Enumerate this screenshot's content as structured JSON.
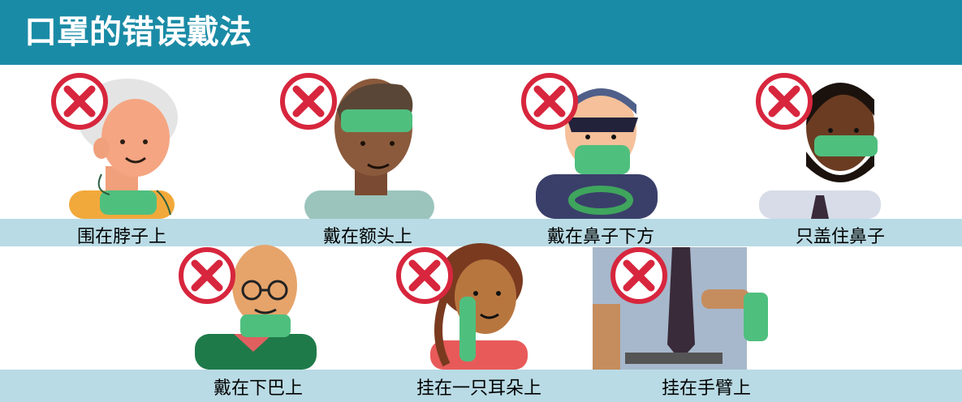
{
  "title": "口罩的错误戴法",
  "colors": {
    "header_bg": "#1a8ba6",
    "label_band_bg": "#b9dbe5",
    "mask_green": "#4fbf7e",
    "cross_red": "#d7263d"
  },
  "items": [
    {
      "label": "围在脖子上",
      "icon": "cross-icon"
    },
    {
      "label": "戴在额头上",
      "icon": "cross-icon"
    },
    {
      "label": "戴在鼻子下方",
      "icon": "cross-icon"
    },
    {
      "label": "只盖住鼻子",
      "icon": "cross-icon"
    },
    {
      "label": "戴在下巴上",
      "icon": "cross-icon"
    },
    {
      "label": "挂在一只耳朵上",
      "icon": "cross-icon"
    },
    {
      "label": "挂在手臂上",
      "icon": "cross-icon"
    }
  ]
}
